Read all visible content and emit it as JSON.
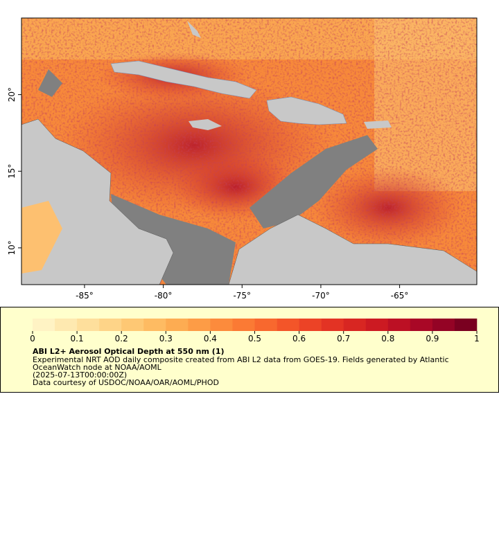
{
  "map": {
    "xlim": [
      -89,
      -60.1
    ],
    "ylim": [
      7.6,
      25
    ],
    "xticks": [
      {
        "value": -85,
        "label": "-85°"
      },
      {
        "value": -80,
        "label": "-80°"
      },
      {
        "value": -75,
        "label": "-75°"
      },
      {
        "value": -70,
        "label": "-70°"
      },
      {
        "value": -65,
        "label": "-65°"
      }
    ],
    "yticks": [
      {
        "value": 10,
        "label": "10°"
      },
      {
        "value": 15,
        "label": "15°"
      },
      {
        "value": 20,
        "label": "20°"
      }
    ]
  },
  "legend": {
    "colorbar": {
      "range": [
        0,
        1
      ],
      "ticks": [
        0,
        0.1,
        0.2,
        0.3,
        0.4,
        0.5,
        0.6,
        0.7,
        0.8,
        0.9,
        1
      ],
      "colors": [
        "#fff3c4",
        "#fee9b0",
        "#fedf9c",
        "#fed488",
        "#fec874",
        "#febb62",
        "#fdac52",
        "#fd9c46",
        "#fc8b3c",
        "#fb7a34",
        "#f8682e",
        "#f35529",
        "#ec4326",
        "#e33324",
        "#d82622",
        "#cc1a22",
        "#bc1024",
        "#a90826",
        "#940325",
        "#7a0020"
      ]
    },
    "title": "ABI L2+ Aerosol Optical Depth at 550 nm (1)",
    "description": [
      "Experimental NRT AOD daily composite created from ABI L2 data from GOES-19. Fields generated by Atlantic",
      "OceanWatch node at NOAA/AOML"
    ],
    "date": "(2025-07-13T00:00:00Z)",
    "credit": "Data courtesy of USDOC/NOAA/OAR/AOML/PHOD"
  }
}
